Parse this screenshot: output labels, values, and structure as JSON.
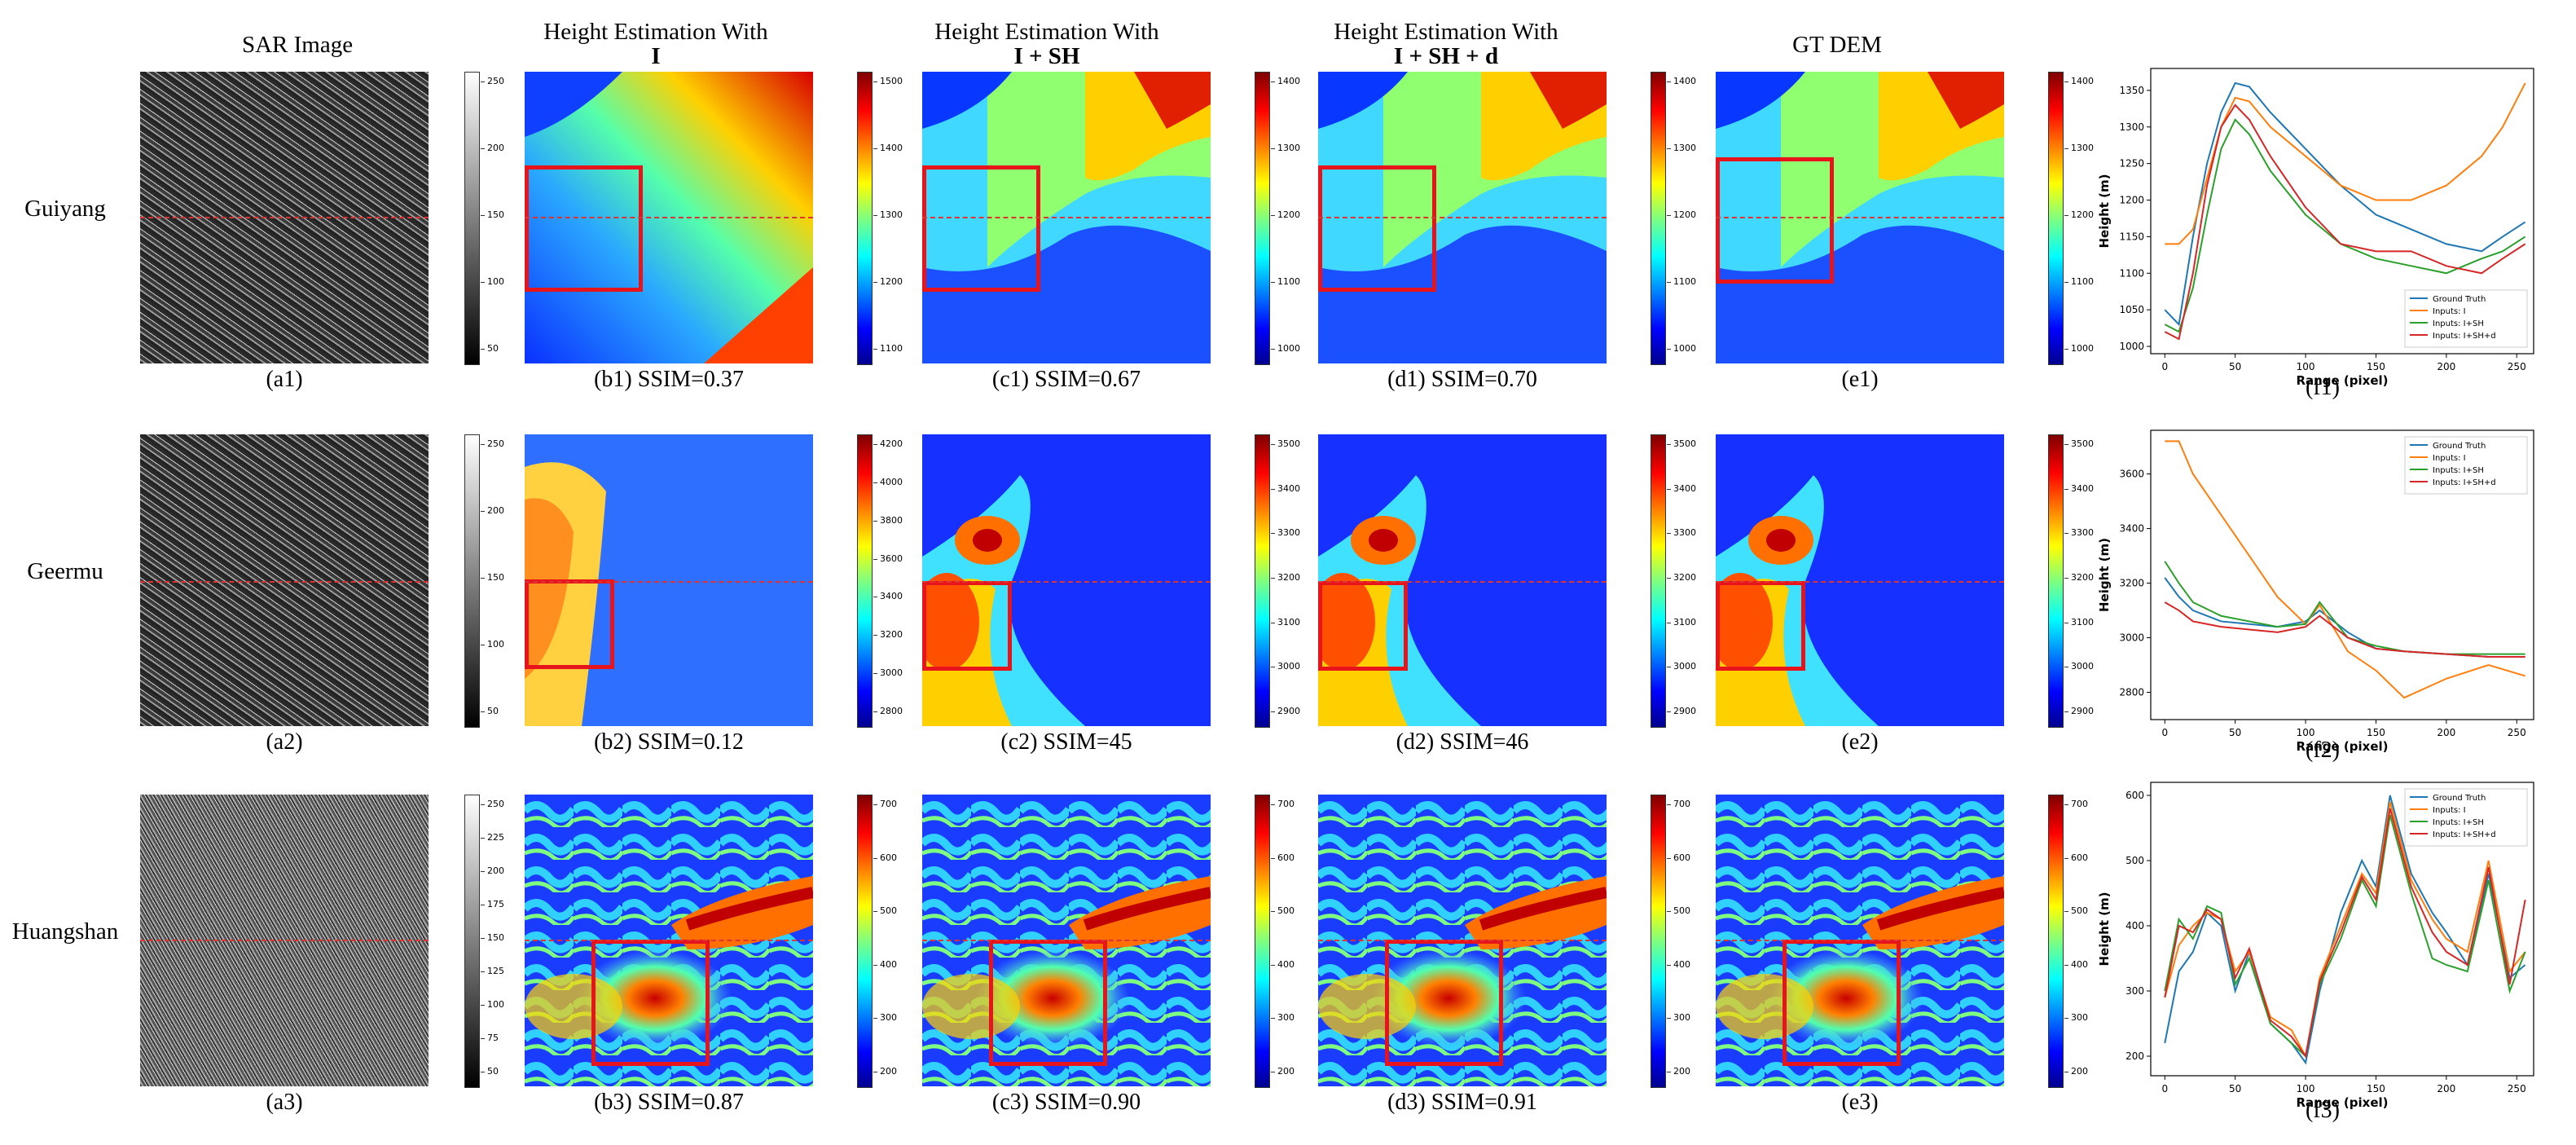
{
  "column_headers": {
    "sar": "SAR Image",
    "b": {
      "line1": "Height Estimation With",
      "line2": "I"
    },
    "c": {
      "line1": "Height Estimation With",
      "line2": "I + SH"
    },
    "d": {
      "line1": "Height Estimation With",
      "line2": "I + SH + d"
    },
    "e": "GT DEM"
  },
  "rows": [
    {
      "name": "Guiyang",
      "captions": {
        "a": "(a1)",
        "b": "(b1) SSIM=0.37",
        "c": "(c1) SSIM=0.67",
        "d": "(d1) SSIM=0.70",
        "e": "(e1)",
        "f": "(f1)"
      },
      "sar_ticks": [
        "250",
        "200",
        "150",
        "100",
        "50"
      ],
      "b_ticks": [
        "1500",
        "1400",
        "1300",
        "1200",
        "1100"
      ],
      "c_ticks": [
        "1400",
        "1300",
        "1200",
        "1100",
        "1000"
      ],
      "d_ticks": [
        "1400",
        "1300",
        "1200",
        "1100",
        "1000"
      ],
      "e_ticks": [
        "1400",
        "1300",
        "1200",
        "1100",
        "1000"
      ]
    },
    {
      "name": "Geermu",
      "captions": {
        "a": "(a2)",
        "b": "(b2) SSIM=0.12",
        "c": "(c2) SSIM=45",
        "d": "(d2) SSIM=46",
        "e": "(e2)",
        "f": "(f2)"
      },
      "sar_ticks": [
        "250",
        "200",
        "150",
        "100",
        "50"
      ],
      "b_ticks": [
        "4200",
        "4000",
        "3800",
        "3600",
        "3400",
        "3200",
        "3000",
        "2800"
      ],
      "c_ticks": [
        "3500",
        "3400",
        "3300",
        "3200",
        "3100",
        "3000",
        "2900"
      ],
      "d_ticks": [
        "3500",
        "3400",
        "3300",
        "3200",
        "3100",
        "3000",
        "2900"
      ],
      "e_ticks": [
        "3500",
        "3400",
        "3300",
        "3200",
        "3100",
        "3000",
        "2900"
      ]
    },
    {
      "name": "Huangshan",
      "captions": {
        "a": "(a3)",
        "b": "(b3) SSIM=0.87",
        "c": "(c3) SSIM=0.90",
        "d": "(d3) SSIM=0.91",
        "e": "(e3)",
        "f": "(f3)"
      },
      "sar_ticks": [
        "250",
        "225",
        "200",
        "175",
        "150",
        "125",
        "100",
        "75",
        "50"
      ],
      "b_ticks": [
        "700",
        "600",
        "500",
        "400",
        "300",
        "200"
      ],
      "c_ticks": [
        "700",
        "600",
        "500",
        "400",
        "300",
        "200"
      ],
      "d_ticks": [
        "700",
        "600",
        "500",
        "400",
        "300",
        "200"
      ],
      "e_ticks": [
        "700",
        "600",
        "500",
        "400",
        "300",
        "200"
      ]
    }
  ],
  "colors": {
    "gt": "#1f77b4",
    "i": "#ff7f0e",
    "ish": "#2ca02c",
    "ishd": "#d62728",
    "box": "#e8141c"
  },
  "chart_data": [
    {
      "type": "line",
      "title": "",
      "xlabel": "Range (pixel)",
      "ylabel": "Height (m)",
      "xlim": [
        -10,
        262
      ],
      "ylim": [
        990,
        1380
      ],
      "xticks": [
        0,
        50,
        100,
        150,
        200,
        250
      ],
      "yticks": [
        1000,
        1050,
        1100,
        1150,
        1200,
        1250,
        1300,
        1350
      ],
      "legend_position": "bottom-right",
      "x": [
        0,
        10,
        20,
        30,
        40,
        50,
        60,
        75,
        100,
        125,
        150,
        175,
        200,
        225,
        240,
        256
      ],
      "series": [
        {
          "name": "Ground Truth",
          "values": [
            1050,
            1030,
            1150,
            1250,
            1320,
            1360,
            1355,
            1320,
            1270,
            1220,
            1180,
            1160,
            1140,
            1130,
            1150,
            1170
          ]
        },
        {
          "name": "Inputs: I",
          "values": [
            1140,
            1140,
            1160,
            1230,
            1300,
            1340,
            1335,
            1300,
            1260,
            1220,
            1200,
            1200,
            1220,
            1260,
            1300,
            1360
          ]
        },
        {
          "name": "Inputs: I+SH",
          "values": [
            1030,
            1020,
            1080,
            1180,
            1270,
            1310,
            1290,
            1240,
            1180,
            1140,
            1120,
            1110,
            1100,
            1120,
            1130,
            1150
          ]
        },
        {
          "name": "Inputs: I+SH+d",
          "values": [
            1020,
            1010,
            1100,
            1220,
            1300,
            1330,
            1310,
            1260,
            1190,
            1140,
            1130,
            1130,
            1110,
            1100,
            1120,
            1140
          ]
        }
      ]
    },
    {
      "type": "line",
      "title": "",
      "xlabel": "Range (pixel)",
      "ylabel": "Height (m)",
      "xlim": [
        -10,
        262
      ],
      "ylim": [
        2700,
        3760
      ],
      "xticks": [
        0,
        50,
        100,
        150,
        200,
        250
      ],
      "yticks": [
        2800,
        3000,
        3200,
        3400,
        3600
      ],
      "legend_position": "top-right",
      "x": [
        0,
        10,
        20,
        40,
        60,
        80,
        100,
        110,
        130,
        150,
        170,
        200,
        230,
        256
      ],
      "series": [
        {
          "name": "Ground Truth",
          "values": [
            3220,
            3150,
            3100,
            3060,
            3050,
            3040,
            3060,
            3100,
            3020,
            2960,
            2950,
            2940,
            2930,
            2930
          ]
        },
        {
          "name": "Inputs: I",
          "values": [
            3720,
            3720,
            3600,
            3450,
            3300,
            3150,
            3050,
            3120,
            2950,
            2880,
            2780,
            2850,
            2900,
            2860
          ]
        },
        {
          "name": "Inputs: I+SH",
          "values": [
            3280,
            3200,
            3130,
            3080,
            3060,
            3040,
            3050,
            3130,
            3000,
            2970,
            2950,
            2940,
            2940,
            2940
          ]
        },
        {
          "name": "Inputs: I+SH+d",
          "values": [
            3130,
            3100,
            3060,
            3040,
            3030,
            3020,
            3040,
            3080,
            3000,
            2960,
            2950,
            2940,
            2930,
            2930
          ]
        }
      ]
    },
    {
      "type": "line",
      "title": "",
      "xlabel": "Range (pixel)",
      "ylabel": "Height (m)",
      "xlim": [
        -10,
        262
      ],
      "ylim": [
        170,
        620
      ],
      "xticks": [
        0,
        50,
        100,
        150,
        200,
        250
      ],
      "yticks": [
        200,
        300,
        400,
        500,
        600
      ],
      "legend_position": "top-right",
      "x": [
        0,
        10,
        20,
        30,
        40,
        50,
        60,
        75,
        90,
        100,
        110,
        125,
        140,
        150,
        160,
        175,
        190,
        200,
        215,
        230,
        245,
        256
      ],
      "series": [
        {
          "name": "Ground Truth",
          "values": [
            220,
            330,
            360,
            420,
            400,
            300,
            360,
            250,
            220,
            190,
            300,
            420,
            500,
            460,
            600,
            480,
            420,
            390,
            340,
            480,
            320,
            340
          ]
        },
        {
          "name": "Inputs: I",
          "values": [
            290,
            370,
            400,
            420,
            410,
            330,
            360,
            260,
            240,
            200,
            320,
            400,
            480,
            450,
            590,
            470,
            410,
            380,
            360,
            500,
            330,
            360
          ]
        },
        {
          "name": "Inputs: I+SH",
          "values": [
            300,
            410,
            380,
            430,
            420,
            310,
            350,
            250,
            220,
            200,
            310,
            380,
            470,
            430,
            570,
            450,
            350,
            340,
            330,
            470,
            300,
            360
          ]
        },
        {
          "name": "Inputs: I+SH+d",
          "values": [
            290,
            400,
            390,
            425,
            410,
            320,
            365,
            255,
            230,
            200,
            315,
            390,
            475,
            440,
            580,
            460,
            390,
            360,
            340,
            490,
            310,
            440
          ]
        }
      ]
    }
  ]
}
